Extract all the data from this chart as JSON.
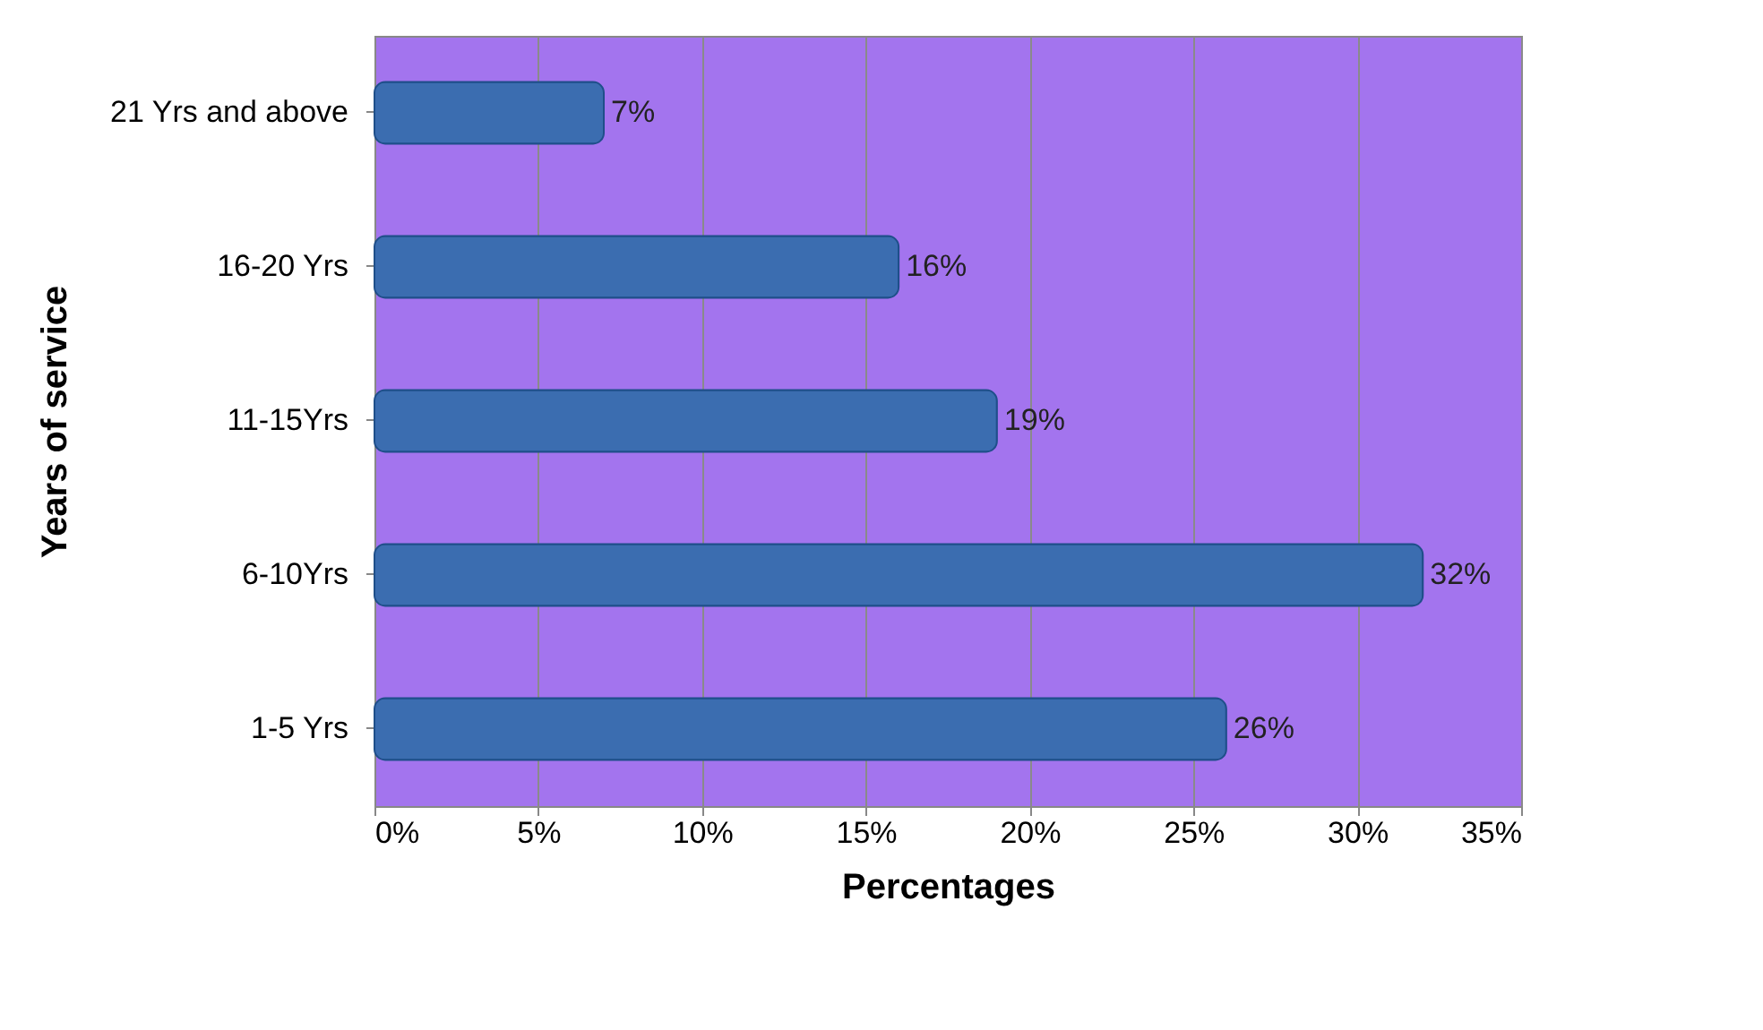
{
  "chart_data": {
    "type": "bar",
    "orientation": "horizontal",
    "xlabel": "Percentages",
    "ylabel": "Years of service",
    "categories": [
      "21 Yrs and above",
      "16-20 Yrs",
      "11-15Yrs",
      "6-10Yrs",
      "1-5 Yrs"
    ],
    "values": [
      7,
      16,
      19,
      32,
      26
    ],
    "color": "#3b6db0",
    "value_labels": [
      "7%",
      "16%",
      "19%",
      "32%",
      "26%"
    ],
    "xlim": [
      0,
      35
    ],
    "xticks": [
      {
        "value": 0,
        "label": "0%"
      },
      {
        "value": 5,
        "label": "5%"
      },
      {
        "value": 10,
        "label": "10%"
      },
      {
        "value": 15,
        "label": "15%"
      },
      {
        "value": 20,
        "label": "20%"
      },
      {
        "value": 25,
        "label": "25%"
      },
      {
        "value": 30,
        "label": "30%"
      },
      {
        "value": 35,
        "label": "35%"
      }
    ],
    "grid": "x"
  }
}
